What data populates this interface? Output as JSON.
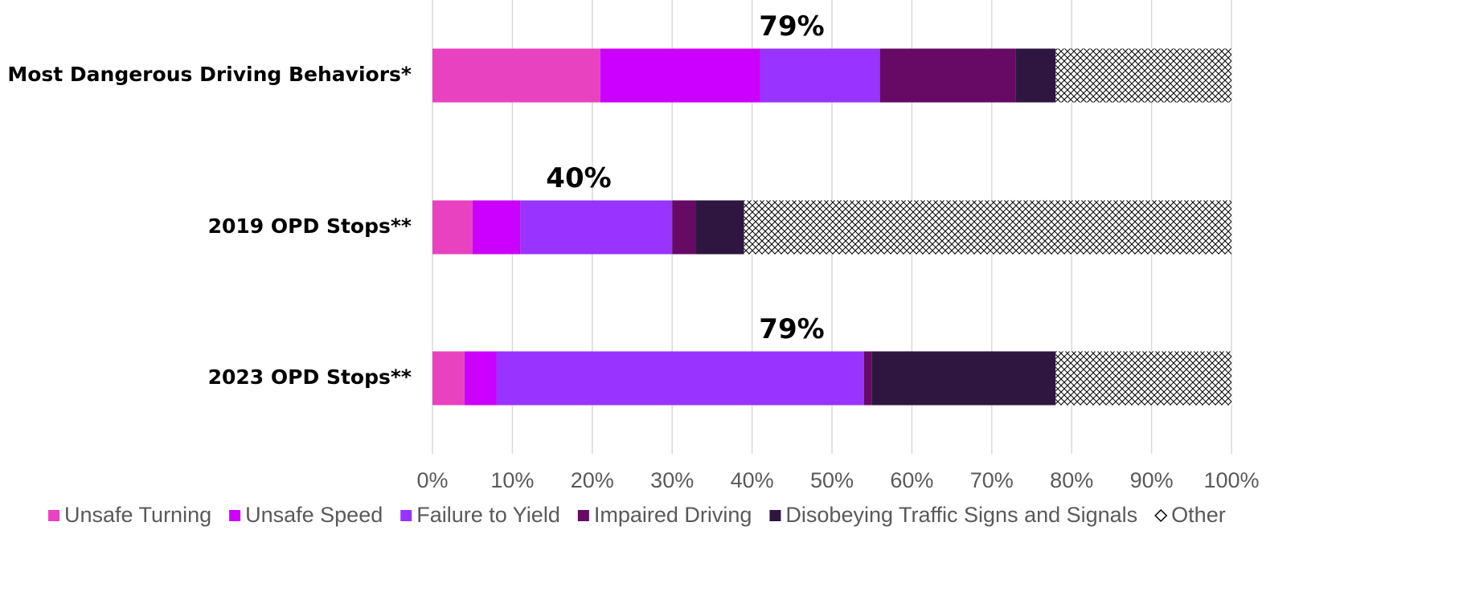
{
  "chart_data": {
    "type": "stacked_barh",
    "categories": [
      "Most Dangerous Driving Behaviors*",
      "2019 OPD Stops**",
      "2023 OPD Stops**"
    ],
    "series": [
      {
        "name": "Unsafe Turning",
        "color": "#e942c0",
        "values": [
          21,
          5,
          4
        ]
      },
      {
        "name": "Unsafe Speed",
        "color": "#cc00ff",
        "values": [
          20,
          6,
          4
        ]
      },
      {
        "name": "Failure to Yield",
        "color": "#9933ff",
        "values": [
          15,
          19,
          46
        ]
      },
      {
        "name": "Impaired Driving",
        "color": "#660a66",
        "values": [
          17,
          3,
          1
        ]
      },
      {
        "name": "Disobeying Traffic Signs and Signals",
        "color": "#2e1640",
        "values": [
          5,
          6,
          23
        ]
      },
      {
        "name": "Other",
        "color": "#000000",
        "pattern": "crosshatch",
        "values": [
          22,
          61,
          22
        ]
      }
    ],
    "annotations": [
      "79%",
      "40%",
      "79%"
    ],
    "xlim": [
      0,
      100
    ],
    "xticks": [
      {
        "value": 0,
        "label": "0%"
      },
      {
        "value": 10,
        "label": "10%"
      },
      {
        "value": 20,
        "label": "20%"
      },
      {
        "value": 30,
        "label": "30%"
      },
      {
        "value": 40,
        "label": "40%"
      },
      {
        "value": 50,
        "label": "50%"
      },
      {
        "value": 60,
        "label": "60%"
      },
      {
        "value": 70,
        "label": "70%"
      },
      {
        "value": 80,
        "label": "80%"
      },
      {
        "value": 90,
        "label": "90%"
      },
      {
        "value": 100,
        "label": "100%"
      }
    ],
    "grid": true,
    "legend": "bottom"
  }
}
